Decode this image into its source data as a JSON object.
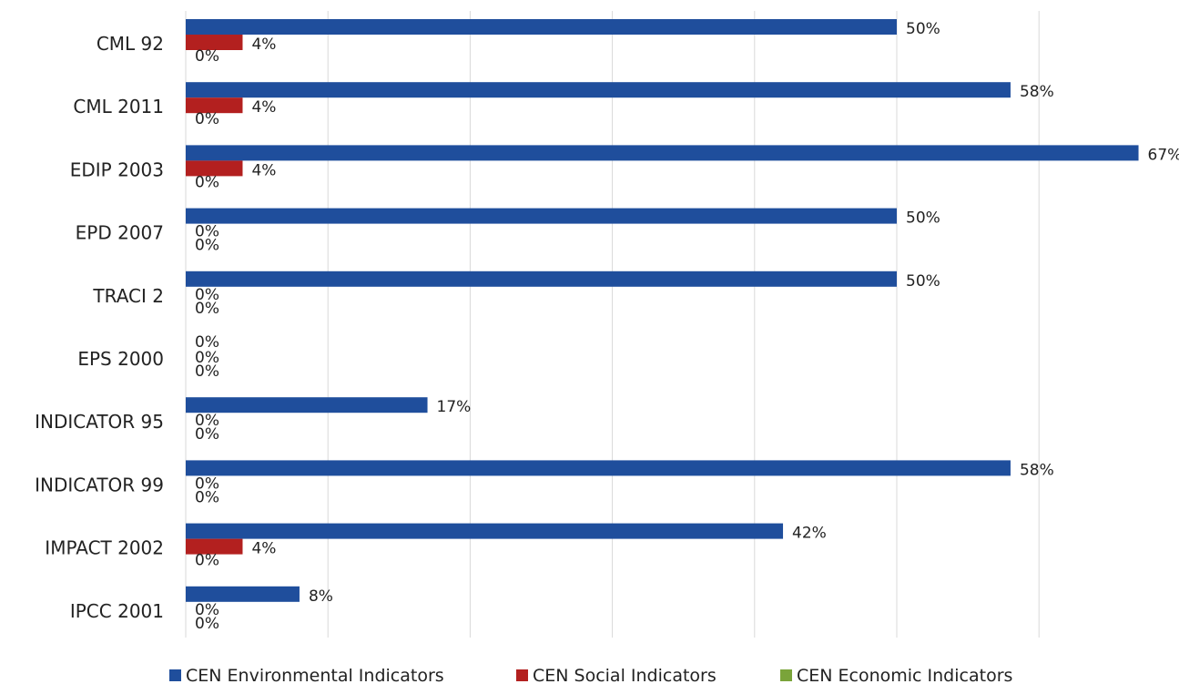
{
  "chart_data": {
    "type": "bar",
    "orientation": "horizontal",
    "categories": [
      "CML 92",
      "CML 2011",
      "EDIP 2003",
      "EPD 2007",
      "TRACI 2",
      "EPS 2000",
      "INDICATOR 95",
      "INDICATOR 99",
      "IMPACT 2002",
      "IPCC 2001"
    ],
    "series": [
      {
        "name": "CEN Environmental Indicators",
        "color": "#1f4e9c",
        "values": [
          50,
          58,
          67,
          50,
          50,
          0,
          17,
          58,
          42,
          8
        ],
        "labels": [
          "50%",
          "58%",
          "67%",
          "50%",
          "50%",
          "0%",
          "17%",
          "58%",
          "42%",
          "8%"
        ]
      },
      {
        "name": "CEN Social Indicators",
        "color": "#b3201f",
        "values": [
          4,
          4,
          4,
          0,
          0,
          0,
          0,
          0,
          4,
          0
        ],
        "labels": [
          "4%",
          "4%",
          "4%",
          "0%",
          "0%",
          "0%",
          "0%",
          "0%",
          "4%",
          "0%"
        ]
      },
      {
        "name": "CEN Economic Indicators",
        "color": "#7aa43a",
        "values": [
          0,
          0,
          0,
          0,
          0,
          0,
          0,
          0,
          0,
          0
        ],
        "labels": [
          "0%",
          "0%",
          "0%",
          "0%",
          "0%",
          "0%",
          "0%",
          "0%",
          "0%",
          "0%"
        ]
      }
    ],
    "xlim": [
      0,
      70
    ],
    "grid": true,
    "legend": "bottom"
  }
}
